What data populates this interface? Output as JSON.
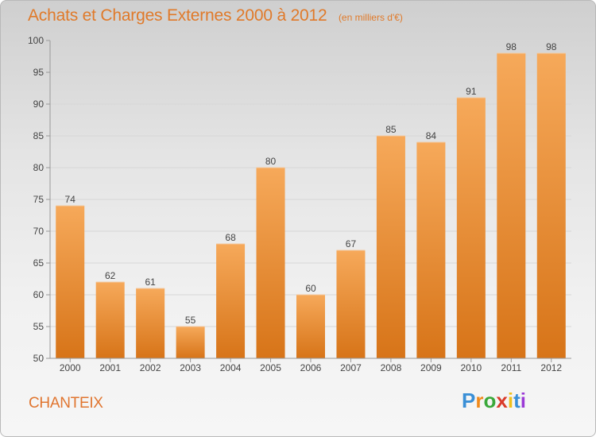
{
  "header": {
    "title": "Achats et Charges Externes 2000 à 2012",
    "unit": "(en milliers d'€)"
  },
  "commune": "CHANTEIX",
  "logo": {
    "text": "Proxiti",
    "letters": [
      "P",
      "r",
      "o",
      "x",
      "i",
      "t",
      "i"
    ],
    "colors": [
      "#3a8fd6",
      "#f08a1c",
      "#3aa83a",
      "#d93a2a",
      "#f0c01c",
      "#3a8fd6",
      "#9b3ad6"
    ]
  },
  "colors": {
    "bar_top": "#f6a95a",
    "bar_bottom": "#d77418",
    "title": "#e07a2a",
    "axis": "#999999"
  },
  "chart_data": {
    "type": "bar",
    "title": "Achats et Charges Externes 2000 à 2012",
    "ylabel": "(en milliers d'€)",
    "xlabel": "",
    "categories": [
      "2000",
      "2001",
      "2002",
      "2003",
      "2004",
      "2005",
      "2006",
      "2007",
      "2008",
      "2009",
      "2010",
      "2011",
      "2012"
    ],
    "values": [
      74,
      62,
      61,
      55,
      68,
      80,
      60,
      67,
      85,
      84,
      91,
      98,
      98
    ],
    "ylim": [
      50,
      100
    ],
    "yticks": [
      50,
      55,
      60,
      65,
      70,
      75,
      80,
      85,
      90,
      95,
      100
    ],
    "grid": true,
    "legend": "none"
  }
}
